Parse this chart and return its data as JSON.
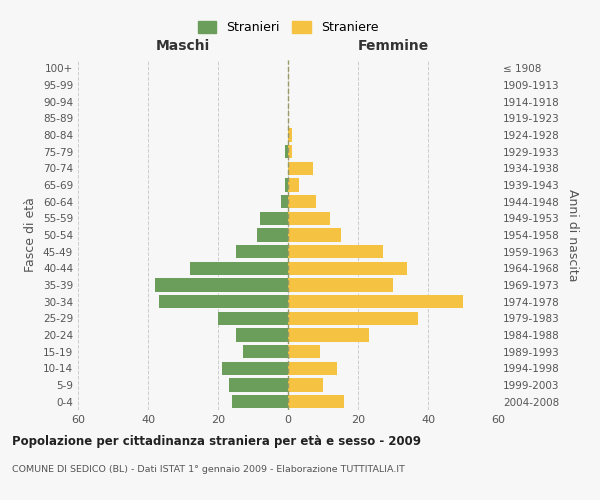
{
  "age_groups": [
    "0-4",
    "5-9",
    "10-14",
    "15-19",
    "20-24",
    "25-29",
    "30-34",
    "35-39",
    "40-44",
    "45-49",
    "50-54",
    "55-59",
    "60-64",
    "65-69",
    "70-74",
    "75-79",
    "80-84",
    "85-89",
    "90-94",
    "95-99",
    "100+"
  ],
  "birth_years": [
    "2004-2008",
    "1999-2003",
    "1994-1998",
    "1989-1993",
    "1984-1988",
    "1979-1983",
    "1974-1978",
    "1969-1973",
    "1964-1968",
    "1959-1963",
    "1954-1958",
    "1949-1953",
    "1944-1948",
    "1939-1943",
    "1934-1938",
    "1929-1933",
    "1924-1928",
    "1919-1923",
    "1914-1918",
    "1909-1913",
    "≤ 1908"
  ],
  "males": [
    16,
    17,
    19,
    13,
    15,
    20,
    37,
    38,
    28,
    15,
    9,
    8,
    2,
    1,
    0,
    1,
    0,
    0,
    0,
    0,
    0
  ],
  "females": [
    16,
    10,
    14,
    9,
    23,
    37,
    50,
    30,
    34,
    27,
    15,
    12,
    8,
    3,
    7,
    1,
    1,
    0,
    0,
    0,
    0
  ],
  "male_color": "#6a9e5a",
  "female_color": "#f5c242",
  "male_label": "Stranieri",
  "female_label": "Straniere",
  "title": "Popolazione per cittadinanza straniera per età e sesso - 2009",
  "subtitle": "COMUNE DI SEDICO (BL) - Dati ISTAT 1° gennaio 2009 - Elaborazione TUTTITALIA.IT",
  "xlabel_left": "Maschi",
  "xlabel_right": "Femmine",
  "ylabel_left": "Fasce di età",
  "ylabel_right": "Anni di nascita",
  "xlim": 60,
  "background_color": "#f7f7f7",
  "grid_color": "#cccccc"
}
